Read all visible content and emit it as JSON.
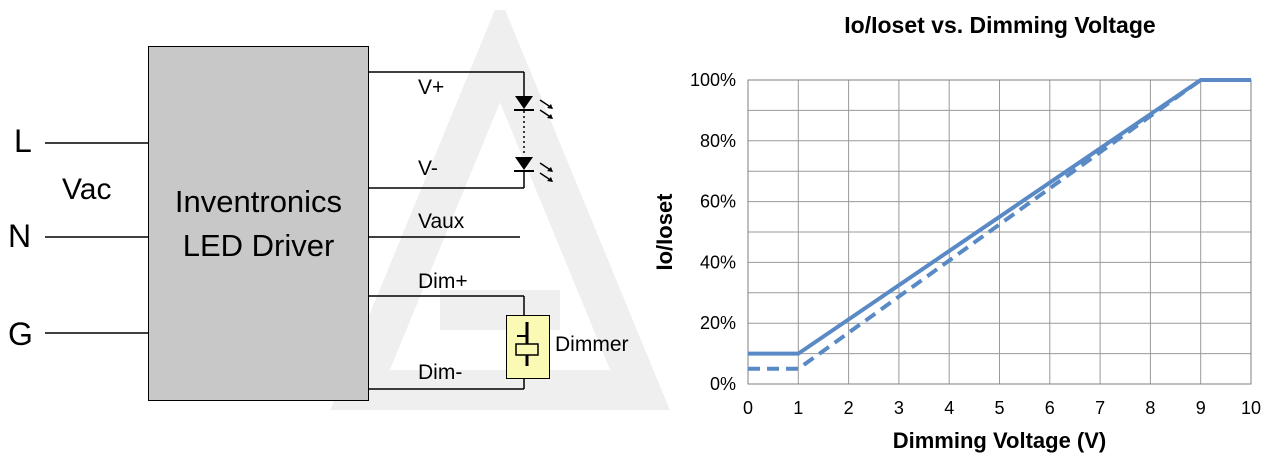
{
  "diagram": {
    "driver_label_line1": "Inventronics",
    "driver_label_line2": "LED Driver",
    "input_L": "L",
    "input_N": "N",
    "input_G": "G",
    "input_vac": "Vac",
    "out_vplus": "V+",
    "out_vminus": "V-",
    "out_vaux": "Vaux",
    "out_dimplus": "Dim+",
    "out_dimminus": "Dim-",
    "dimmer_label": "Dimmer"
  },
  "chart_data": {
    "type": "line",
    "title": "Io/Ioset vs. Dimming Voltage",
    "xlabel": "Dimming Voltage (V)",
    "ylabel": "Io/Ioset",
    "xlim": [
      0,
      10
    ],
    "ylim": [
      0,
      100
    ],
    "x_ticks": [
      "0",
      "1",
      "2",
      "3",
      "4",
      "5",
      "6",
      "7",
      "8",
      "9",
      "10"
    ],
    "y_ticks": [
      "0%",
      "20%",
      "40%",
      "60%",
      "80%",
      "100%"
    ],
    "grid": true,
    "legend": "none",
    "series": [
      {
        "style": "solid",
        "color": "#5a8ac6",
        "x": [
          0,
          1,
          9,
          10
        ],
        "y": [
          10,
          10,
          100,
          100
        ]
      },
      {
        "style": "dashed",
        "color": "#5a8ac6",
        "x": [
          0,
          1,
          9,
          10
        ],
        "y": [
          5,
          5,
          100,
          100
        ]
      }
    ]
  }
}
